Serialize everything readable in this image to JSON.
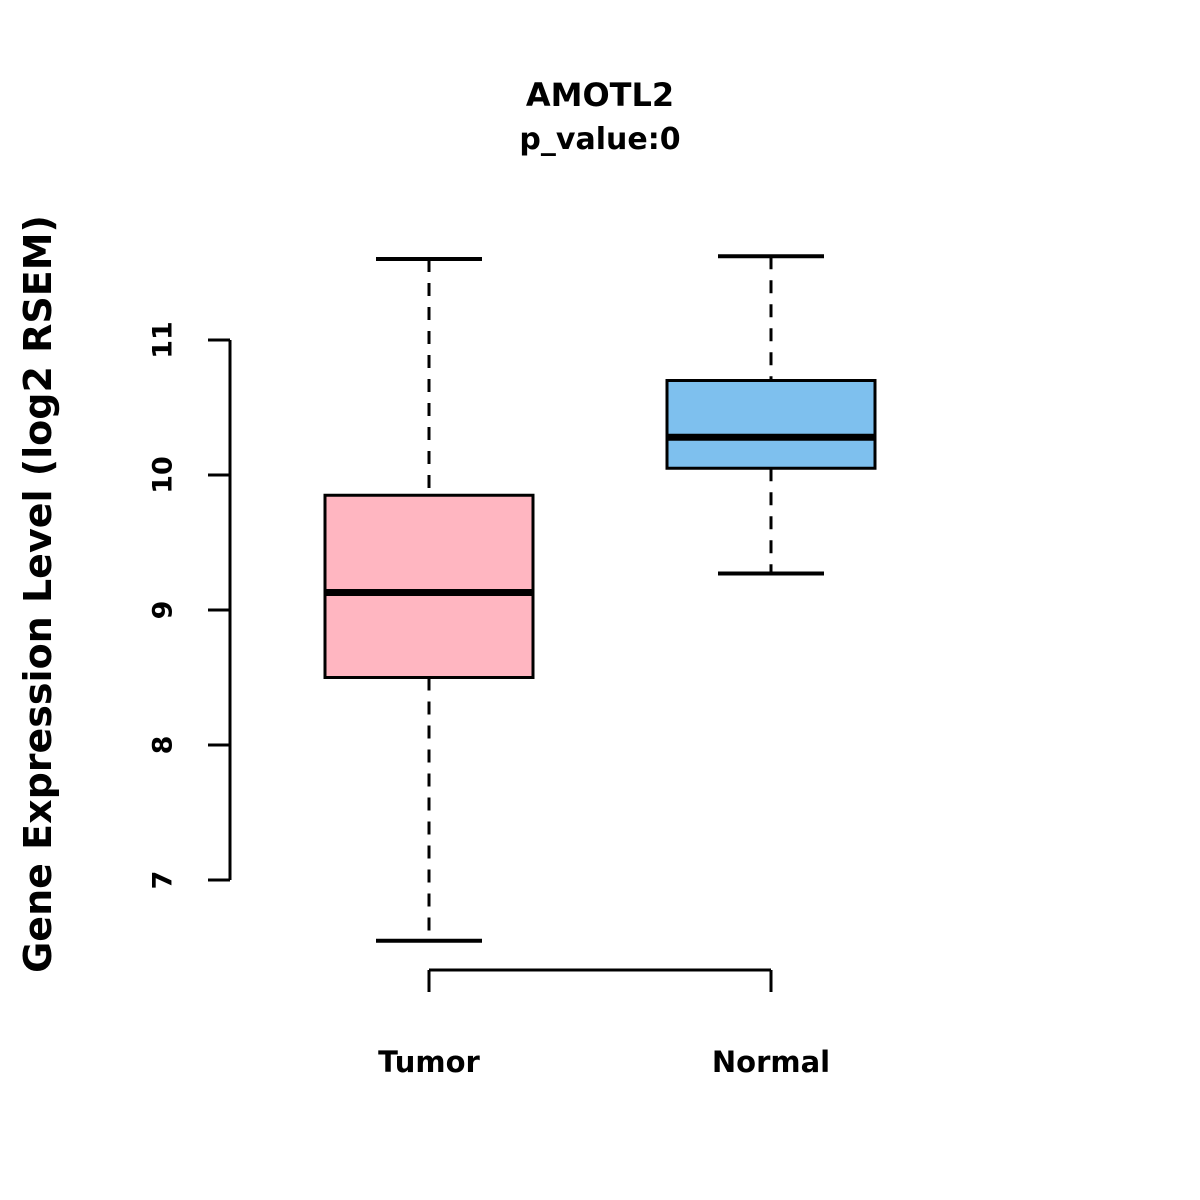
{
  "title": "AMOTL2",
  "subtitle": "p_value:0",
  "chart_data": {
    "type": "boxplot",
    "title": "AMOTL2",
    "subtitle": "p_value:0",
    "ylabel": "Gene Expression Level (log2 RSEM)",
    "xlabel": "",
    "categories": [
      "Tumor",
      "Normal"
    ],
    "yticks": [
      7,
      8,
      9,
      10,
      11
    ],
    "ylim": [
      6.4,
      11.8
    ],
    "grid": false,
    "legend": "none",
    "series": [
      {
        "name": "Tumor",
        "color": "#FFB6C1",
        "min": 6.55,
        "q1": 8.5,
        "median": 9.13,
        "q3": 9.85,
        "max": 11.6
      },
      {
        "name": "Normal",
        "color": "#7EC0EE",
        "min": 9.27,
        "q1": 10.05,
        "median": 10.28,
        "q3": 10.7,
        "max": 11.62
      }
    ]
  }
}
